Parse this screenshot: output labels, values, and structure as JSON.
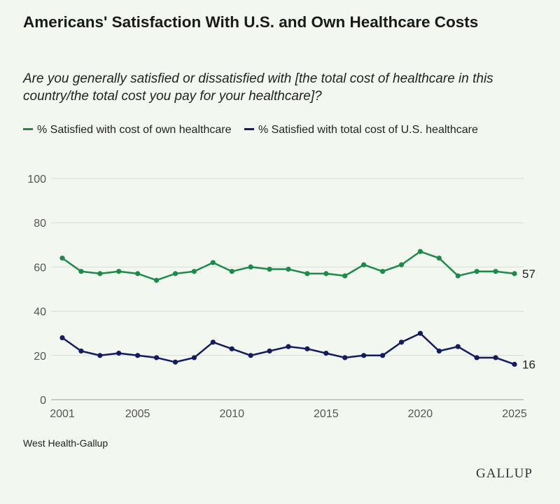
{
  "title": "Americans' Satisfaction With U.S. and Own Healthcare Costs",
  "subtitle": "Are you generally satisfied or dissatisfied with [the total cost of healthcare in this country/the total cost you pay for your healthcare]?",
  "source": "West Health-Gallup",
  "logo": "GALLUP",
  "chart_data": {
    "type": "line",
    "title": "Americans' Satisfaction With U.S. and Own Healthcare Costs",
    "xlabel": "",
    "ylabel": "",
    "ylim": [
      0,
      100
    ],
    "xlim": [
      2001,
      2025
    ],
    "yticks": [
      "0",
      "20",
      "40",
      "60",
      "80",
      "100"
    ],
    "xticks": [
      "2001",
      "2005",
      "2010",
      "2015",
      "2020",
      "2025"
    ],
    "grid": true,
    "legend": "top",
    "x": [
      2001,
      2002,
      2003,
      2004,
      2005,
      2006,
      2007,
      2008,
      2009,
      2010,
      2011,
      2012,
      2013,
      2014,
      2015,
      2016,
      2017,
      2018,
      2019,
      2020,
      2021,
      2022,
      2023,
      2024,
      2025
    ],
    "series": [
      {
        "name": "% Satisfied with cost of own healthcare",
        "color": "#1e8a4a",
        "values": [
          64,
          58,
          57,
          58,
          57,
          54,
          57,
          58,
          62,
          58,
          60,
          59,
          59,
          57,
          57,
          56,
          61,
          58,
          61,
          67,
          64,
          56,
          58,
          58,
          57
        ],
        "end_label": "57"
      },
      {
        "name": "% Satisfied with total cost of U.S. healthcare",
        "color": "#141c5e",
        "values": [
          28,
          22,
          20,
          21,
          20,
          19,
          17,
          19,
          26,
          23,
          20,
          22,
          24,
          23,
          21,
          19,
          20,
          20,
          26,
          30,
          22,
          24,
          19,
          19,
          16
        ],
        "end_label": "16"
      }
    ]
  }
}
